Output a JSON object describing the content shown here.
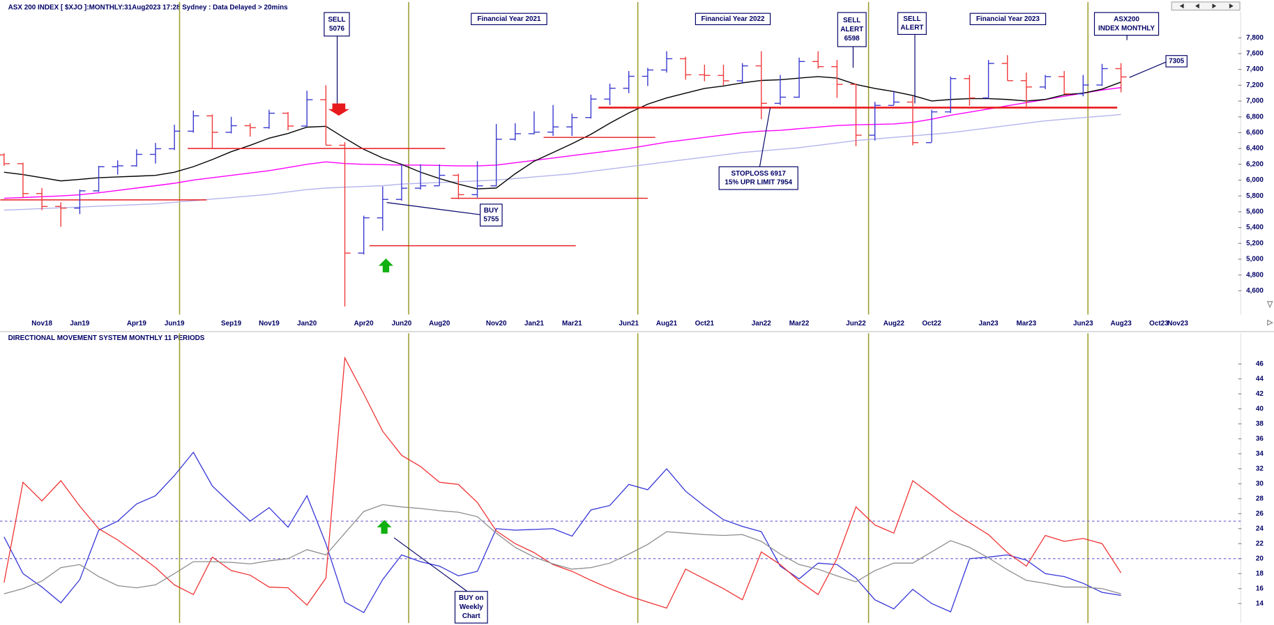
{
  "chart_data": [
    {
      "type": "ohlc",
      "title": "ASX 200 INDEX [ $XJO ]:MONTHLY:31Aug2023 17:28 Sydney : Data Delayed > 20mins",
      "categories": [
        null,
        null,
        "Nov18",
        null,
        "Jan19",
        null,
        null,
        "Apr19",
        null,
        "Jun19",
        null,
        null,
        "Sep19",
        null,
        "Nov19",
        null,
        "Jan20",
        null,
        null,
        "Apr20",
        null,
        "Jun20",
        null,
        "Aug20",
        null,
        null,
        "Nov20",
        null,
        "Jan21",
        null,
        "Mar21",
        null,
        null,
        "Jun21",
        null,
        "Aug21",
        null,
        "Oct21",
        null,
        null,
        "Jan22",
        null,
        "Mar22",
        null,
        null,
        "Jun22",
        null,
        "Aug22",
        null,
        "Oct22",
        null,
        null,
        "Jan23",
        null,
        "Mar23",
        null,
        null,
        "Jun23",
        null,
        "Aug23",
        null,
        "Oct23",
        "Nov23"
      ],
      "open": [
        6319,
        6208,
        5830,
        5667,
        5646,
        5864,
        6169,
        6181,
        6326,
        6397,
        6619,
        6813,
        6605,
        6688,
        6663,
        6846,
        6684,
        7017,
        6441,
        5077,
        5523,
        5756,
        5898,
        5928,
        6061,
        5816,
        5928,
        6517,
        6587,
        6607,
        6673,
        6791,
        7025,
        7162,
        7313,
        7393,
        7535,
        7332,
        7324,
        7256,
        7445,
        6971,
        7049,
        7500,
        7435,
        7211,
        6568,
        6945,
        6987,
        6474,
        6863,
        7284,
        7039,
        7476,
        7258,
        7178,
        7309,
        7091,
        7203,
        7410,
        null,
        null,
        null
      ],
      "high": [
        6340,
        6220,
        5900,
        5720,
        5880,
        6180,
        6250,
        6390,
        6470,
        6700,
        6880,
        6830,
        6800,
        6720,
        6890,
        6860,
        7130,
        7200,
        6480,
        5550,
        5920,
        6200,
        6200,
        6200,
        6080,
        6240,
        6710,
        6720,
        6870,
        6950,
        6840,
        7080,
        7220,
        7380,
        7420,
        7630,
        7560,
        7460,
        7460,
        7480,
        7630,
        7330,
        7550,
        7630,
        7520,
        7220,
        6990,
        7130,
        7060,
        6890,
        7310,
        7330,
        7520,
        7580,
        7360,
        7330,
        7380,
        7330,
        7470,
        7480,
        null,
        null,
        null
      ],
      "low": [
        6180,
        5780,
        5620,
        5410,
        5570,
        5850,
        6070,
        6170,
        6210,
        6380,
        6600,
        6400,
        6590,
        6550,
        6650,
        6630,
        6680,
        6440,
        4402,
        5060,
        5360,
        5740,
        5880,
        5930,
        5760,
        5780,
        5920,
        6500,
        6580,
        6560,
        6560,
        6780,
        6950,
        7100,
        7190,
        7360,
        7270,
        7250,
        7200,
        7220,
        6770,
        6950,
        7040,
        7410,
        7040,
        6430,
        6500,
        6950,
        6440,
        6480,
        6850,
        6940,
        7030,
        7260,
        6900,
        7150,
        7090,
        7060,
        7190,
        7110,
        null,
        null,
        null
      ],
      "close": [
        6208,
        5830,
        5667,
        5646,
        5864,
        6169,
        6181,
        6326,
        6397,
        6619,
        6813,
        6605,
        6688,
        6663,
        6846,
        6684,
        7017,
        6441,
        5077,
        5523,
        5756,
        5898,
        5928,
        6061,
        5816,
        5928,
        6517,
        6587,
        6607,
        6673,
        6791,
        7025,
        7162,
        7313,
        7393,
        7535,
        7332,
        7324,
        7256,
        7445,
        6971,
        7049,
        7500,
        7435,
        7211,
        6568,
        6945,
        6987,
        6474,
        6863,
        7284,
        7039,
        7476,
        7258,
        7178,
        7309,
        7091,
        7203,
        7410,
        7305,
        null,
        null,
        null
      ],
      "up_color": "#3a3ad0",
      "down_color": "#f03a3a",
      "series": [
        {
          "color": "#000000",
          "values": [
            6100,
            6070,
            6030,
            5990,
            6010,
            6030,
            6040,
            6050,
            6060,
            6100,
            6170,
            6260,
            6360,
            6440,
            6530,
            6590,
            6670,
            6680,
            6530,
            6390,
            6280,
            6200,
            6100,
            6020,
            5950,
            5890,
            5900,
            6080,
            6240,
            6350,
            6460,
            6580,
            6720,
            6850,
            6960,
            7040,
            7100,
            7160,
            7190,
            7230,
            7260,
            7270,
            7290,
            7310,
            7290,
            7210,
            7160,
            7120,
            7070,
            7000,
            7020,
            7030,
            7030,
            7020,
            7000,
            7020,
            7080,
            7100,
            7150,
            7240,
            null,
            null,
            null
          ]
        },
        {
          "color": "#ff00ff",
          "values": [
            5770,
            5780,
            5790,
            5800,
            5815,
            5840,
            5870,
            5900,
            5930,
            5960,
            6000,
            6030,
            6060,
            6090,
            6120,
            6160,
            6200,
            6230,
            6210,
            6200,
            6195,
            6190,
            6190,
            6185,
            6180,
            6180,
            6190,
            6220,
            6250,
            6280,
            6310,
            6340,
            6370,
            6400,
            6440,
            6480,
            6510,
            6540,
            6570,
            6600,
            6620,
            6630,
            6650,
            6670,
            6690,
            6700,
            6705,
            6710,
            6730,
            6770,
            6820,
            6860,
            6900,
            6940,
            6980,
            7020,
            7060,
            7100,
            7140,
            7170,
            null,
            null,
            null
          ]
        },
        {
          "color": "#b4b4ec",
          "values": [
            5620,
            5630,
            5640,
            5650,
            5660,
            5670,
            5680,
            5690,
            5700,
            5720,
            5740,
            5760,
            5780,
            5800,
            5820,
            5850,
            5880,
            5900,
            5910,
            5920,
            5930,
            5950,
            5960,
            5970,
            5980,
            5990,
            6000,
            6020,
            6040,
            6060,
            6080,
            6110,
            6140,
            6170,
            6200,
            6230,
            6260,
            6290,
            6320,
            6350,
            6370,
            6390,
            6410,
            6440,
            6470,
            6500,
            6520,
            6540,
            6560,
            6580,
            6600,
            6630,
            6660,
            6690,
            6720,
            6750,
            6770,
            6790,
            6810,
            6830,
            null,
            null,
            null
          ]
        }
      ],
      "levels": [
        {
          "value": 6400,
          "start": 9.7,
          "end": 23.3
        },
        {
          "value": 5750,
          "start": -0.2,
          "end": 10.7
        },
        {
          "value": 5170,
          "start": 19.3,
          "end": 30.2
        },
        {
          "value": 5770,
          "start": 23.6,
          "end": 34
        },
        {
          "value": 6540,
          "start": 28.5,
          "end": 34.4
        },
        {
          "value": 6917,
          "start": 31.4,
          "end": 58.8
        }
      ],
      "level_color": "#e8191c",
      "ylim": [
        4300,
        8130
      ],
      "yticks": [
        {
          "value": 4600,
          "label": "4,600"
        },
        {
          "value": 4800,
          "label": "4,800"
        },
        {
          "value": 5000,
          "label": "5,000"
        },
        {
          "value": 5200,
          "label": "5,200"
        },
        {
          "value": 5400,
          "label": "5,400"
        },
        {
          "value": 5600,
          "label": "5,600"
        },
        {
          "value": 5800,
          "label": "5,800"
        },
        {
          "value": 6000,
          "label": "6,000"
        },
        {
          "value": 6200,
          "label": "6,200"
        },
        {
          "value": 6400,
          "label": "6,400"
        },
        {
          "value": 6600,
          "label": "6,600"
        },
        {
          "value": 6800,
          "label": "6,800"
        },
        {
          "value": 7000,
          "label": "7,000"
        },
        {
          "value": 7200,
          "label": "7,200"
        },
        {
          "value": 7400,
          "label": "7,400"
        },
        {
          "value": 7600,
          "label": "7,600"
        },
        {
          "value": 7800,
          "label": "7,800"
        }
      ],
      "annotations": [
        {
          "text": [
            "SELL",
            "5076"
          ]
        },
        {
          "text": [
            "Financial Year 2021"
          ]
        },
        {
          "text": [
            "Financial Year 2022"
          ]
        },
        {
          "text": [
            "SELL",
            "ALERT",
            "6598"
          ]
        },
        {
          "text": [
            "SELL",
            "ALERT"
          ]
        },
        {
          "text": [
            "Financial Year 2023"
          ]
        },
        {
          "text": [
            "ASX200",
            "INDEX MONTHLY"
          ]
        },
        {
          "text": [
            "7305"
          ]
        },
        {
          "text": [
            "BUY",
            "5755"
          ]
        },
        {
          "text": [
            "STOPLOSS 6917",
            "15% UPR LIMIT 7954"
          ]
        }
      ]
    },
    {
      "type": "line",
      "title": "DIRECTIONAL MOVEMENT SYSTEM MONTHLY 11 PERIODS",
      "series": [
        {
          "color": "#3434d8",
          "values": [
            22.9,
            18,
            16.2,
            14.1,
            17.2,
            23.8,
            25,
            27.3,
            28.4,
            31.1,
            34.2,
            29.7,
            27.3,
            25,
            26.8,
            24.2,
            28.4,
            22,
            14.2,
            12.8,
            17.2,
            20.5,
            19.6,
            19,
            17.7,
            18.3,
            24,
            23.8,
            23.9,
            24,
            23,
            26.5,
            27.1,
            29.9,
            29.2,
            32,
            29,
            27,
            25.2,
            24.3,
            23.6,
            19,
            17.3,
            19.4,
            19.2,
            17.4,
            14.5,
            13.3,
            15.9,
            14,
            12.9,
            20,
            20.2,
            20.5,
            19.8,
            18,
            17.6,
            16.7,
            15.5,
            15.1
          ]
        },
        {
          "color": "#f03030",
          "values": [
            16.8,
            30.2,
            27.7,
            30.4,
            27,
            24,
            22.5,
            20.7,
            18.8,
            16.5,
            15.2,
            20.2,
            18.4,
            17.8,
            16.2,
            16.1,
            13.8,
            17.4,
            46.8,
            42,
            37,
            33.8,
            32.3,
            30.2,
            29.9,
            27.5,
            23.7,
            22,
            20.8,
            19.2,
            18.3,
            17.1,
            16,
            15,
            14.2,
            13.4,
            18.6,
            17.3,
            16,
            14.5,
            20.9,
            19.2,
            17,
            15.2,
            20,
            26.9,
            24.5,
            23.4,
            30.4,
            28.5,
            26.5,
            24.8,
            23.2,
            20.8,
            19,
            23.1,
            22.3,
            22.7,
            22,
            18.1
          ]
        },
        {
          "color": "#8c8c8c",
          "values": [
            15.3,
            16,
            17,
            18.8,
            19.2,
            17.6,
            16.4,
            16.1,
            16.5,
            18,
            19.6,
            19.6,
            19.5,
            19.3,
            19.7,
            20,
            21.2,
            20.5,
            23.4,
            26.3,
            27.2,
            26.9,
            26.7,
            26.4,
            26.2,
            25.6,
            23.4,
            21.5,
            20.2,
            19.3,
            18.6,
            18.8,
            19.4,
            20.6,
            21.9,
            23.6,
            23.4,
            23.2,
            23.1,
            23.2,
            22.3,
            20.6,
            19.2,
            18.6,
            17.7,
            16.9,
            18.4,
            19.4,
            19.4,
            20.9,
            22.4,
            21.5,
            20.1,
            18.5,
            17.1,
            16.7,
            16.2,
            16.2,
            16,
            15.3
          ]
        }
      ],
      "hlines": [
        25,
        20
      ],
      "hline_color": "#7a6ad8",
      "ylim": [
        11.4,
        50.1
      ],
      "yticks": [
        14,
        16,
        18,
        20,
        22,
        24,
        26,
        28,
        30,
        32,
        34,
        36,
        38,
        40,
        42,
        44,
        46
      ],
      "annotations": [
        {
          "text": [
            "BUY on",
            "Weekly",
            "Chart"
          ]
        }
      ]
    }
  ]
}
